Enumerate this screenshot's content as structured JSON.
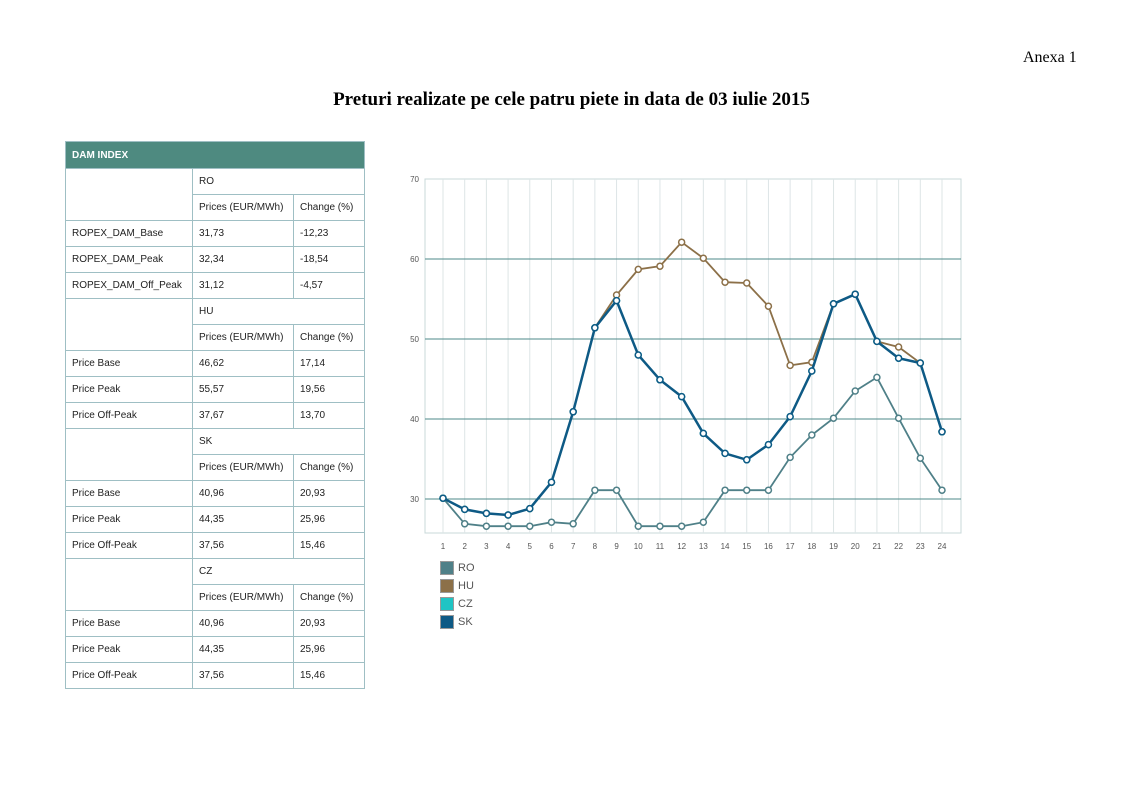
{
  "anexa": "Anexa 1",
  "title": "Preturi realizate pe cele patru piete in data de 03 iulie 2015",
  "table": {
    "header": "DAM INDEX",
    "col_prices": "Prices (EUR/MWh)",
    "col_change": "Change (%)",
    "groups": [
      {
        "market": "RO",
        "rows": [
          [
            "ROPEX_DAM_Base",
            "31,73",
            "-12,23"
          ],
          [
            "ROPEX_DAM_Peak",
            "32,34",
            "-18,54"
          ],
          [
            "ROPEX_DAM_Off_Peak",
            "31,12",
            "-4,57"
          ]
        ]
      },
      {
        "market": "HU",
        "rows": [
          [
            "Price Base",
            "46,62",
            "17,14"
          ],
          [
            "Price Peak",
            "55,57",
            "19,56"
          ],
          [
            "Price Off-Peak",
            "37,67",
            "13,70"
          ]
        ]
      },
      {
        "market": "SK",
        "rows": [
          [
            "Price Base",
            "40,96",
            "20,93"
          ],
          [
            "Price Peak",
            "44,35",
            "25,96"
          ],
          [
            "Price Off-Peak",
            "37,56",
            "15,46"
          ]
        ]
      },
      {
        "market": "CZ",
        "rows": [
          [
            "Price Base",
            "40,96",
            "20,93"
          ],
          [
            "Price Peak",
            "44,35",
            "25,96"
          ],
          [
            "Price Off-Peak",
            "37,56",
            "15,46"
          ]
        ]
      }
    ]
  },
  "chart_data": {
    "type": "line",
    "title": "",
    "xlabel": "",
    "ylabel": "",
    "x": [
      1,
      2,
      3,
      4,
      5,
      6,
      7,
      8,
      9,
      10,
      11,
      12,
      13,
      14,
      15,
      16,
      17,
      18,
      19,
      20,
      21,
      22,
      23,
      24
    ],
    "ylim": [
      25.7,
      70
    ],
    "yticks": [
      30,
      40,
      50,
      60,
      70
    ],
    "legend": "bottom-left",
    "series": [
      {
        "name": "RO",
        "color": "#4f8088",
        "values": [
          30.1,
          26.9,
          26.6,
          26.6,
          26.6,
          27.1,
          26.9,
          31.1,
          31.1,
          26.6,
          26.6,
          26.6,
          27.1,
          31.1,
          31.1,
          31.1,
          35.2,
          38.0,
          40.1,
          43.5,
          45.2,
          40.1,
          35.1,
          31.1
        ]
      },
      {
        "name": "HU",
        "color": "#8c7048",
        "values": [
          30.1,
          28.7,
          28.2,
          28.0,
          28.8,
          32.1,
          40.9,
          51.4,
          55.5,
          58.7,
          59.1,
          62.1,
          60.1,
          57.1,
          57.0,
          54.1,
          46.7,
          47.1,
          54.4,
          55.6,
          49.7,
          49.0,
          47.0,
          38.4
        ]
      },
      {
        "name": "CZ",
        "color": "#1fc4c4",
        "values": [
          30.1,
          28.7,
          28.2,
          28.0,
          28.8,
          32.1,
          40.9,
          51.4,
          54.8,
          48.0,
          44.9,
          42.8,
          38.2,
          35.7,
          34.9,
          36.8,
          40.3,
          46.0,
          54.4,
          55.6,
          49.7,
          47.6,
          47.0,
          38.4
        ]
      },
      {
        "name": "SK",
        "color": "#0e5a85",
        "values": [
          30.1,
          28.7,
          28.2,
          28.0,
          28.8,
          32.1,
          40.9,
          51.4,
          54.8,
          48.0,
          44.9,
          42.8,
          38.2,
          35.7,
          34.9,
          36.8,
          40.3,
          46.0,
          54.4,
          55.6,
          49.7,
          47.6,
          47.0,
          38.4
        ]
      }
    ]
  }
}
